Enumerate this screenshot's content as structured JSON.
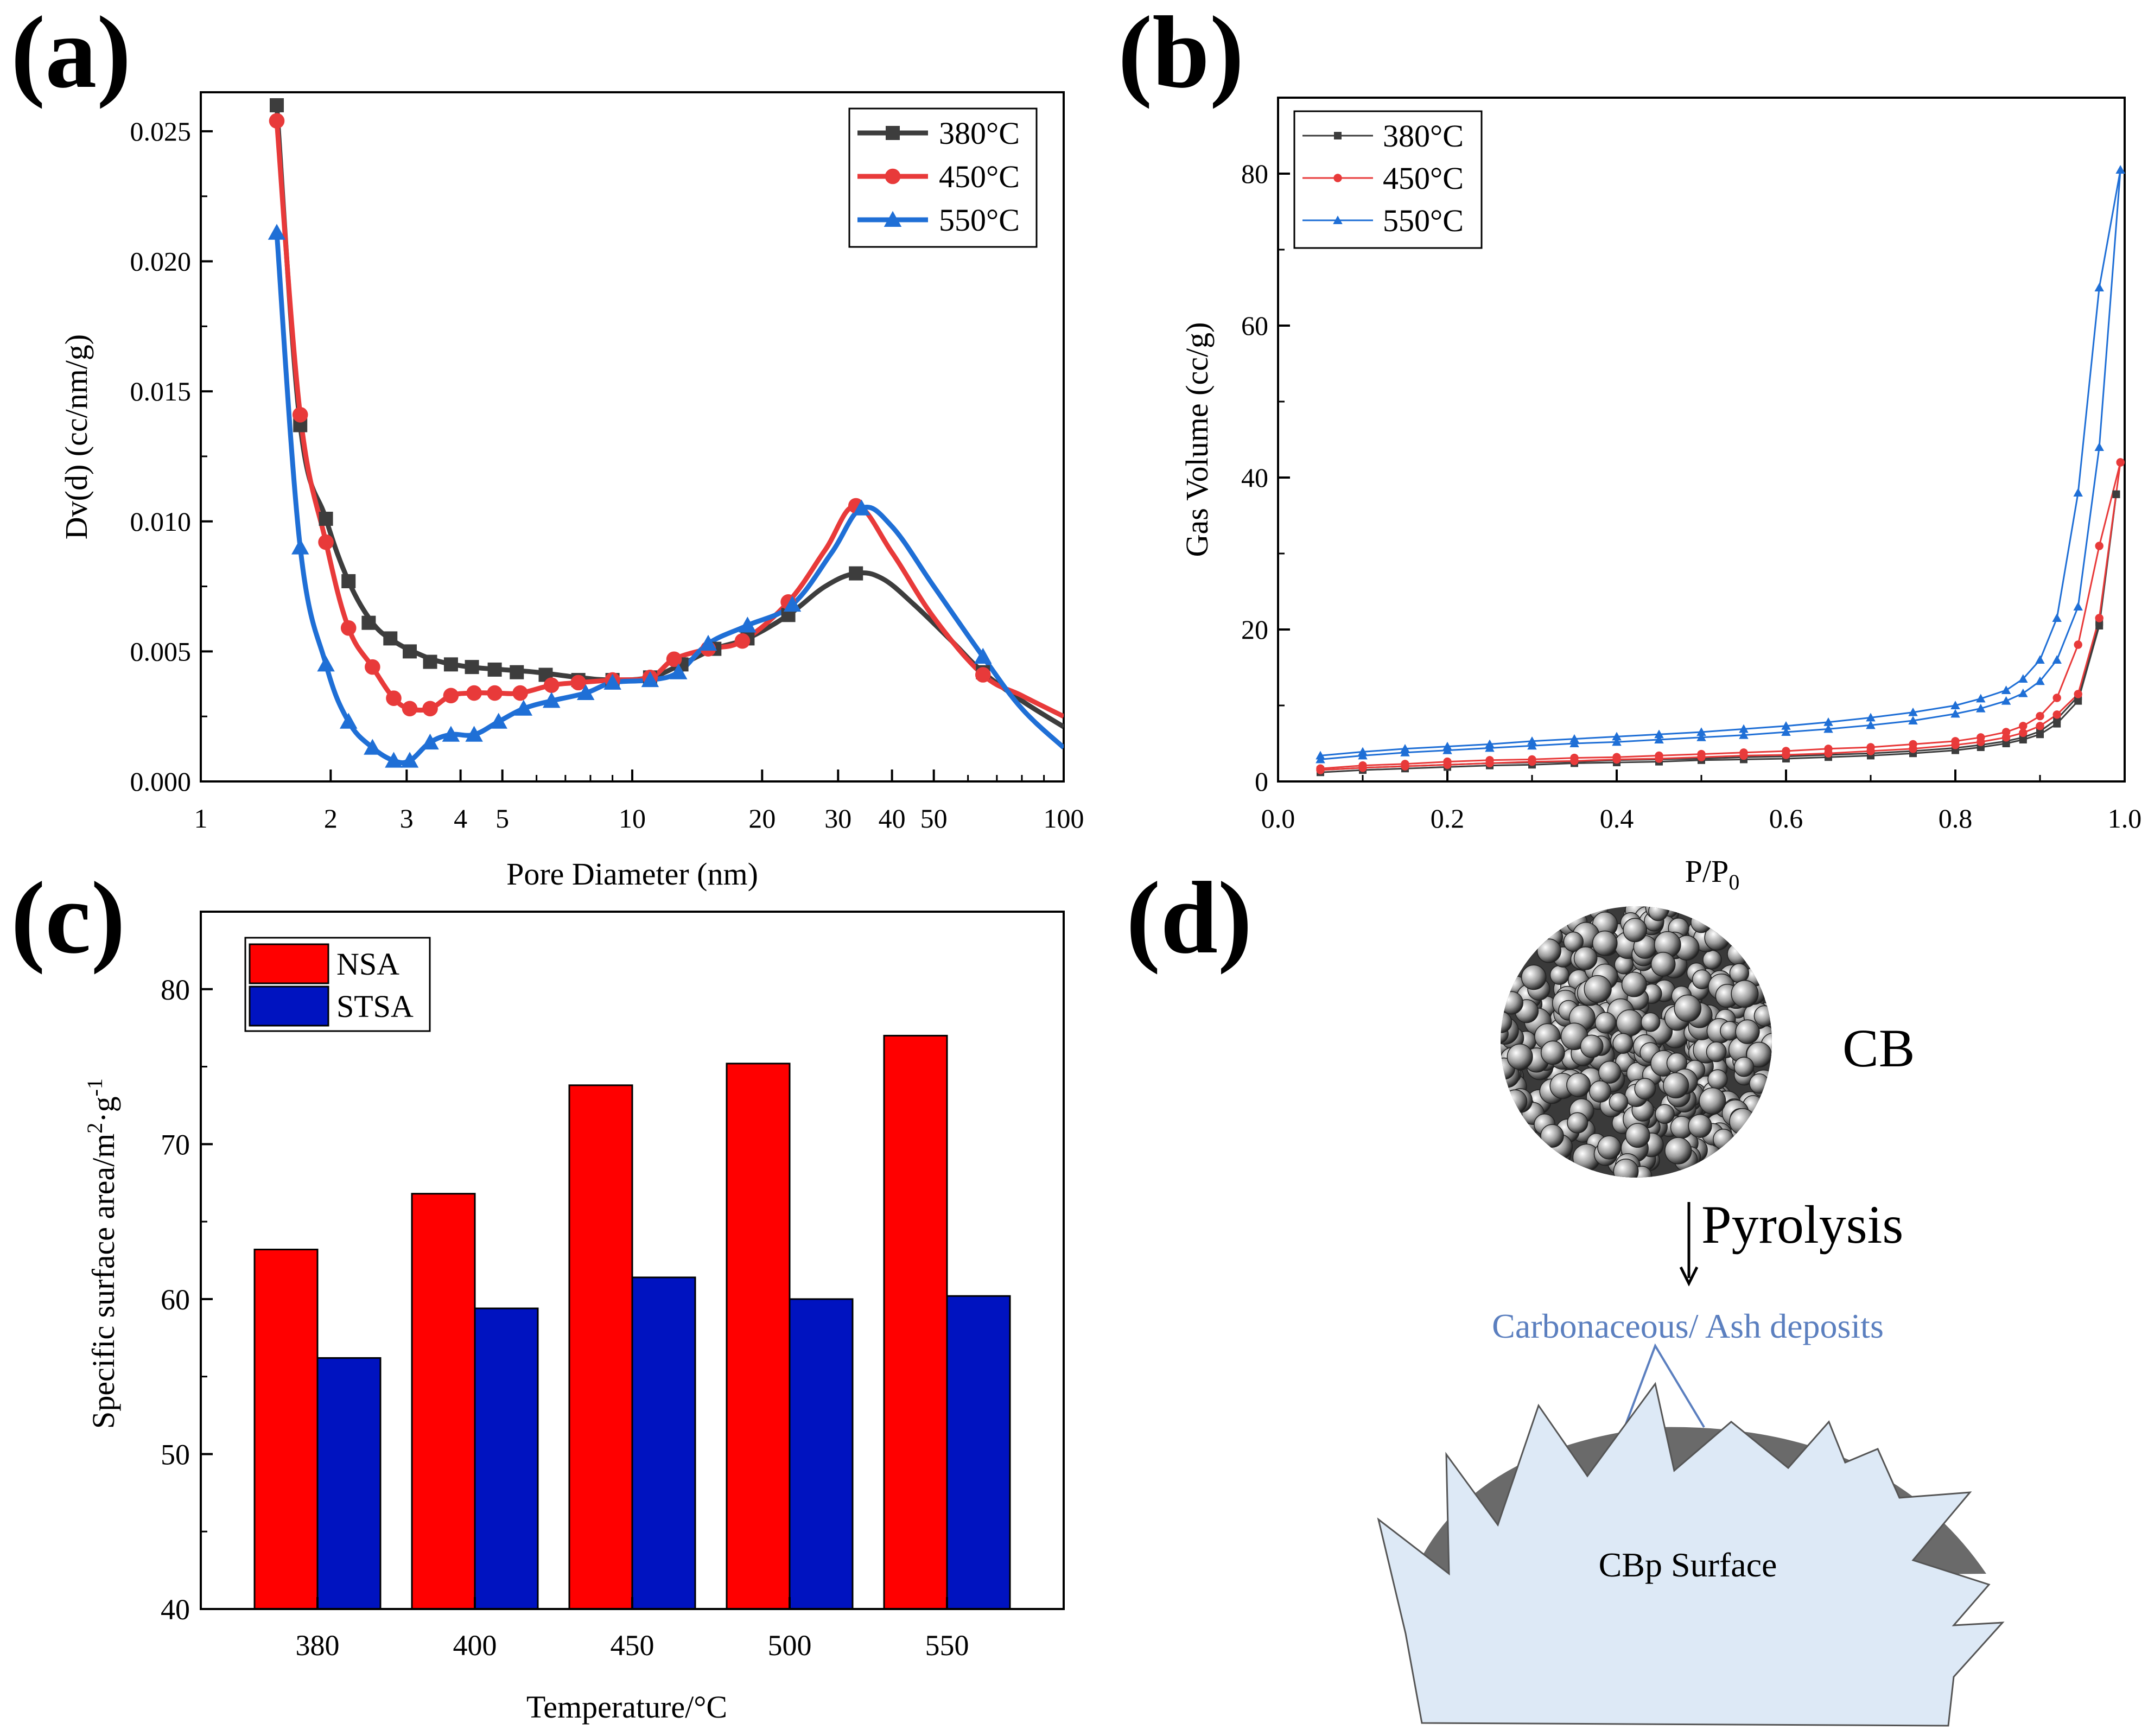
{
  "panels": {
    "a": {
      "label": "(a)"
    },
    "b": {
      "label": "(b)"
    },
    "c": {
      "label": "(c)"
    },
    "d": {
      "label": "(d)"
    }
  },
  "colors": {
    "s380_bold": "#3d3d3d",
    "s380_thin": "#3d3d3d",
    "s450": "#e83a3a",
    "s550": "#1f6fd6",
    "nsa": "#ff0000",
    "stsa": "#0013c0",
    "deposit": "#5b7fbf",
    "surface_fill": "#dde9f6",
    "core_fill": "#6a6a6a"
  },
  "chart_data": [
    {
      "id": "a",
      "type": "line",
      "xscale": "log",
      "xlabel": "Pore Diameter (nm)",
      "ylabel": "Dv(d) (cc/nm/g)",
      "xlim": [
        1,
        100
      ],
      "ylim": [
        0,
        0.0265
      ],
      "xticks": [
        1,
        2,
        3,
        4,
        5,
        10,
        20,
        30,
        40,
        50,
        100
      ],
      "xtick_labels": [
        "1",
        "2",
        "3",
        "4",
        "5",
        "10",
        "20",
        "30",
        "40",
        "50",
        "100"
      ],
      "yticks": [
        0,
        0.005,
        0.01,
        0.015,
        0.02,
        0.025
      ],
      "ytick_labels": [
        "0.000",
        "0.005",
        "0.010",
        "0.015",
        "0.020",
        "0.025"
      ],
      "legend_position": "top-right",
      "series": [
        {
          "name": "380°C",
          "marker": "square",
          "color_key": "s380_bold",
          "x": [
            1.5,
            1.7,
            1.95,
            2.2,
            2.45,
            2.75,
            3.05,
            3.4,
            3.8,
            4.25,
            4.8,
            5.4,
            6.3,
            7.5,
            9.0,
            11.0,
            13.0,
            15.5,
            18.5,
            23.0,
            33.0,
            65.0
          ],
          "y": [
            0.026,
            0.0137,
            0.0101,
            0.0077,
            0.0061,
            0.0055,
            0.005,
            0.0046,
            0.0045,
            0.0044,
            0.0043,
            0.0042,
            0.0041,
            0.0039,
            0.0039,
            0.004,
            0.0045,
            0.0051,
            0.0055,
            0.0064,
            0.008,
            0.0042
          ],
          "curve_x": [
            1.5,
            1.7,
            1.95,
            2.2,
            2.5,
            2.8,
            3.2,
            3.6,
            4.2,
            5,
            6,
            7.5,
            9,
            11,
            13,
            15.5,
            18.5,
            23,
            28,
            33,
            38,
            45,
            55,
            65,
            80,
            100
          ],
          "curve_y": [
            0.026,
            0.0137,
            0.0101,
            0.0077,
            0.0061,
            0.0054,
            0.0049,
            0.0046,
            0.0044,
            0.0043,
            0.0042,
            0.004,
            0.0039,
            0.004,
            0.0045,
            0.0051,
            0.0055,
            0.0064,
            0.0075,
            0.008,
            0.0078,
            0.0068,
            0.0054,
            0.0042,
            0.0031,
            0.0021
          ]
        },
        {
          "name": "450°C",
          "marker": "circle",
          "color_key": "s450",
          "x": [
            1.5,
            1.7,
            1.95,
            2.2,
            2.5,
            2.8,
            3.05,
            3.4,
            3.8,
            4.3,
            4.8,
            5.5,
            6.5,
            7.5,
            9.0,
            11.0,
            12.5,
            15.0,
            18.0,
            23.0,
            33.0,
            65.0
          ],
          "y": [
            0.0254,
            0.0141,
            0.0092,
            0.0059,
            0.0044,
            0.0032,
            0.0028,
            0.0028,
            0.0033,
            0.0034,
            0.0034,
            0.0034,
            0.0037,
            0.0038,
            0.0039,
            0.004,
            0.0047,
            0.0051,
            0.0054,
            0.0069,
            0.0106,
            0.0041
          ],
          "curve_x": [
            1.5,
            1.7,
            1.95,
            2.2,
            2.5,
            2.8,
            3.05,
            3.4,
            3.8,
            4.3,
            4.8,
            5.5,
            6.5,
            7.5,
            9,
            11,
            12.5,
            15,
            18,
            23,
            28,
            33,
            40,
            50,
            65,
            80,
            100
          ],
          "curve_y": [
            0.0254,
            0.0141,
            0.0092,
            0.0059,
            0.0044,
            0.0032,
            0.0028,
            0.0028,
            0.0033,
            0.0034,
            0.0034,
            0.0034,
            0.0037,
            0.0038,
            0.0039,
            0.004,
            0.0047,
            0.0051,
            0.0054,
            0.0069,
            0.0089,
            0.0106,
            0.0088,
            0.0063,
            0.0041,
            0.0033,
            0.0025
          ]
        },
        {
          "name": "550°C",
          "marker": "triangle",
          "color_key": "s550",
          "x": [
            1.5,
            1.7,
            1.95,
            2.2,
            2.5,
            2.8,
            3.05,
            3.4,
            3.8,
            4.3,
            4.9,
            5.6,
            6.5,
            7.8,
            9.0,
            11.0,
            12.8,
            15.0,
            18.5,
            23.5,
            34.0,
            65.0
          ],
          "y": [
            0.0211,
            0.009,
            0.0045,
            0.0023,
            0.0013,
            0.0008,
            0.0008,
            0.0015,
            0.0018,
            0.0018,
            0.0023,
            0.0028,
            0.0031,
            0.0034,
            0.0038,
            0.0039,
            0.0042,
            0.0053,
            0.006,
            0.0068,
            0.0105,
            0.0048
          ],
          "curve_x": [
            1.5,
            1.7,
            1.95,
            2.2,
            2.5,
            2.8,
            3.05,
            3.4,
            3.8,
            4.3,
            4.9,
            5.6,
            6.5,
            7.8,
            9,
            11,
            12.8,
            15,
            18.5,
            23.5,
            29,
            34,
            40,
            50,
            65,
            80,
            100
          ],
          "curve_y": [
            0.0211,
            0.009,
            0.0045,
            0.0023,
            0.0013,
            0.0008,
            0.0008,
            0.0015,
            0.0018,
            0.0018,
            0.0023,
            0.0028,
            0.0031,
            0.0034,
            0.0038,
            0.0039,
            0.0042,
            0.0053,
            0.006,
            0.0068,
            0.0088,
            0.0105,
            0.0098,
            0.0075,
            0.0048,
            0.0028,
            0.0013
          ]
        }
      ]
    },
    {
      "id": "b",
      "type": "line",
      "xlabel_main": "P/P",
      "xlabel_sub": "0",
      "ylabel": "Gas Volume (cc/g)",
      "xlim": [
        0,
        1.0
      ],
      "ylim": [
        0,
        90
      ],
      "xticks": [
        0,
        0.2,
        0.4,
        0.6,
        0.8,
        1.0
      ],
      "xtick_labels": [
        "0.0",
        "0.2",
        "0.4",
        "0.6",
        "0.8",
        "1.0"
      ],
      "yticks": [
        0,
        20,
        40,
        60,
        80
      ],
      "ytick_labels": [
        "0",
        "20",
        "40",
        "60",
        "80"
      ],
      "legend_position": "top-left",
      "series": [
        {
          "name": "380°C",
          "marker": "square",
          "color_key": "s380_thin",
          "adsorption": {
            "x": [
              0.05,
              0.1,
              0.15,
              0.2,
              0.25,
              0.3,
              0.35,
              0.4,
              0.45,
              0.5,
              0.55,
              0.6,
              0.65,
              0.7,
              0.75,
              0.8,
              0.83,
              0.86,
              0.88,
              0.9,
              0.92,
              0.945,
              0.97,
              0.99
            ],
            "y": [
              1.2,
              1.5,
              1.7,
              1.9,
              2.1,
              2.2,
              2.4,
              2.5,
              2.6,
              2.8,
              2.9,
              3.0,
              3.2,
              3.4,
              3.7,
              4.1,
              4.5,
              5.0,
              5.5,
              6.2,
              7.6,
              10.6,
              20.5,
              37.8
            ]
          },
          "desorption": {
            "x": [
              0.99,
              0.97,
              0.945,
              0.92,
              0.9,
              0.88,
              0.86,
              0.83,
              0.8,
              0.75,
              0.7,
              0.65,
              0.6,
              0.55,
              0.5,
              0.45,
              0.4,
              0.35,
              0.3,
              0.25,
              0.2,
              0.15,
              0.1,
              0.05
            ],
            "y": [
              37.8,
              21.0,
              11.2,
              8.2,
              6.6,
              5.8,
              5.3,
              4.8,
              4.4,
              4.0,
              3.7,
              3.5,
              3.3,
              3.2,
              3.0,
              2.9,
              2.8,
              2.6,
              2.5,
              2.4,
              2.2,
              2.0,
              1.8,
              1.5
            ]
          }
        },
        {
          "name": "450°C",
          "marker": "circle",
          "color_key": "s450",
          "adsorption": {
            "x": [
              0.05,
              0.1,
              0.15,
              0.2,
              0.25,
              0.3,
              0.35,
              0.4,
              0.45,
              0.5,
              0.55,
              0.6,
              0.65,
              0.7,
              0.75,
              0.8,
              0.83,
              0.86,
              0.88,
              0.9,
              0.92,
              0.945,
              0.97,
              0.995
            ],
            "y": [
              1.5,
              1.8,
              2.0,
              2.2,
              2.4,
              2.6,
              2.7,
              2.9,
              3.0,
              3.2,
              3.4,
              3.5,
              3.7,
              4.0,
              4.3,
              4.8,
              5.2,
              5.8,
              6.4,
              7.3,
              8.8,
              11.5,
              21.5,
              42.0
            ]
          },
          "desorption": {
            "x": [
              0.995,
              0.97,
              0.945,
              0.92,
              0.9,
              0.88,
              0.86,
              0.83,
              0.8,
              0.75,
              0.7,
              0.65,
              0.6,
              0.55,
              0.5,
              0.45,
              0.4,
              0.35,
              0.3,
              0.25,
              0.2,
              0.15,
              0.1,
              0.05
            ],
            "y": [
              42.0,
              31.0,
              18.0,
              11.0,
              8.6,
              7.3,
              6.5,
              5.8,
              5.3,
              4.9,
              4.5,
              4.3,
              4.0,
              3.8,
              3.6,
              3.4,
              3.2,
              3.1,
              2.9,
              2.8,
              2.6,
              2.3,
              2.1,
              1.7
            ]
          }
        },
        {
          "name": "550°C",
          "marker": "triangle",
          "color_key": "s550",
          "adsorption": {
            "x": [
              0.05,
              0.1,
              0.15,
              0.2,
              0.25,
              0.3,
              0.35,
              0.4,
              0.45,
              0.5,
              0.55,
              0.6,
              0.65,
              0.7,
              0.75,
              0.8,
              0.83,
              0.86,
              0.88,
              0.9,
              0.92,
              0.945,
              0.97,
              0.995
            ],
            "y": [
              2.9,
              3.4,
              3.8,
              4.1,
              4.4,
              4.7,
              5.0,
              5.2,
              5.5,
              5.8,
              6.1,
              6.5,
              6.9,
              7.4,
              8.0,
              8.9,
              9.6,
              10.6,
              11.6,
              13.2,
              16.0,
              23.0,
              44.0,
              80.5
            ]
          },
          "desorption": {
            "x": [
              0.995,
              0.97,
              0.945,
              0.92,
              0.9,
              0.88,
              0.86,
              0.83,
              0.8,
              0.75,
              0.7,
              0.65,
              0.6,
              0.55,
              0.5,
              0.45,
              0.4,
              0.35,
              0.3,
              0.25,
              0.2,
              0.15,
              0.1,
              0.05
            ],
            "y": [
              80.5,
              65.0,
              38.0,
              21.5,
              16.0,
              13.5,
              12.0,
              10.9,
              10.0,
              9.1,
              8.4,
              7.8,
              7.3,
              6.9,
              6.5,
              6.2,
              5.9,
              5.6,
              5.3,
              4.9,
              4.6,
              4.3,
              3.9,
              3.4
            ]
          }
        }
      ]
    },
    {
      "id": "c",
      "type": "bar",
      "xlabel": "Temperature/°C",
      "ylabel_parts": [
        "Specific surface area/m",
        "2",
        "·g",
        "-1"
      ],
      "categories": [
        "380",
        "400",
        "450",
        "500",
        "550"
      ],
      "ylim": [
        40,
        85
      ],
      "yticks": [
        40,
        50,
        60,
        70,
        80
      ],
      "ytick_labels": [
        "40",
        "50",
        "60",
        "70",
        "80"
      ],
      "legend_position": "top-left",
      "series": [
        {
          "name": "NSA",
          "color_key": "nsa",
          "values": [
            63.2,
            66.8,
            73.8,
            75.2,
            77.0
          ]
        },
        {
          "name": "STSA",
          "color_key": "stsa",
          "values": [
            56.2,
            59.4,
            61.4,
            60.0,
            60.2
          ]
        }
      ]
    }
  ],
  "diagram_d": {
    "cb_label": "CB",
    "pyrolysis_label": "Pyrolysis",
    "deposit_label": "Carbonaceous/ Ash deposits",
    "surface_label": "CBp Surface"
  }
}
